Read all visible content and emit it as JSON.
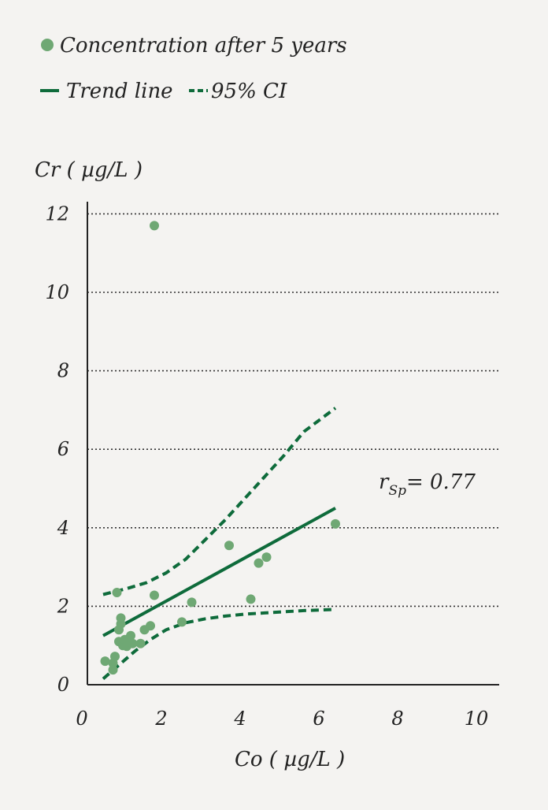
{
  "chart_data": {
    "type": "scatter",
    "xlabel": "Co ( µg/L )",
    "ylabel": "Cr ( µg/L )",
    "xlim": [
      0,
      10.5
    ],
    "ylim": [
      0,
      12.5
    ],
    "x_ticks": [
      0,
      2,
      4,
      6,
      8,
      10
    ],
    "y_ticks": [
      0,
      2,
      4,
      6,
      8,
      10,
      12
    ],
    "grid": "horizontal dotted",
    "legend": {
      "placement": "top-left",
      "entries": [
        {
          "label": "Concentration after 5 years",
          "marker": "circle",
          "color": "#6fa874"
        },
        {
          "label": "Trend line",
          "marker": "solid-line",
          "color": "#0e6b3b"
        },
        {
          "label": "95% CI",
          "marker": "dashed-line",
          "color": "#0e6b3b"
        }
      ]
    },
    "annotation": {
      "symbol": "r",
      "subscript": "Sp",
      "text": "= 0.77",
      "x": 7.4,
      "y": 5.0
    },
    "series": [
      {
        "name": "Concentration after 5 years",
        "type": "scatter",
        "color": "#6fa874",
        "points": [
          [
            0.45,
            0.6
          ],
          [
            0.65,
            0.55
          ],
          [
            0.65,
            0.38
          ],
          [
            0.7,
            0.72
          ],
          [
            0.8,
            1.1
          ],
          [
            0.75,
            2.35
          ],
          [
            0.8,
            1.4
          ],
          [
            0.85,
            1.55
          ],
          [
            0.85,
            1.7
          ],
          [
            0.9,
            1.0
          ],
          [
            0.95,
            1.15
          ],
          [
            1.0,
            0.98
          ],
          [
            1.1,
            1.25
          ],
          [
            1.15,
            1.05
          ],
          [
            1.35,
            1.05
          ],
          [
            1.45,
            1.4
          ],
          [
            1.6,
            1.5
          ],
          [
            1.7,
            2.28
          ],
          [
            1.7,
            11.7
          ],
          [
            2.4,
            1.6
          ],
          [
            2.65,
            2.1
          ],
          [
            3.6,
            3.55
          ],
          [
            4.15,
            2.18
          ],
          [
            4.35,
            3.1
          ],
          [
            4.55,
            3.25
          ],
          [
            6.3,
            4.1
          ]
        ]
      },
      {
        "name": "Trend line",
        "type": "line",
        "color": "#0e6b3b",
        "points": [
          [
            0.4,
            1.25
          ],
          [
            6.3,
            4.5
          ]
        ]
      },
      {
        "name": "95% CI",
        "type": "dashed-line",
        "color": "#0e6b3b",
        "upper": [
          [
            0.4,
            2.3
          ],
          [
            1.0,
            2.45
          ],
          [
            1.5,
            2.6
          ],
          [
            2.0,
            2.85
          ],
          [
            2.5,
            3.2
          ],
          [
            3.0,
            3.7
          ],
          [
            3.5,
            4.2
          ],
          [
            4.0,
            4.75
          ],
          [
            4.5,
            5.3
          ],
          [
            5.0,
            5.85
          ],
          [
            5.5,
            6.45
          ],
          [
            6.3,
            7.05
          ]
        ],
        "lower": [
          [
            0.4,
            0.15
          ],
          [
            0.8,
            0.5
          ],
          [
            1.2,
            0.85
          ],
          [
            1.6,
            1.15
          ],
          [
            2.0,
            1.4
          ],
          [
            2.5,
            1.58
          ],
          [
            3.0,
            1.68
          ],
          [
            3.5,
            1.75
          ],
          [
            4.0,
            1.8
          ],
          [
            4.5,
            1.83
          ],
          [
            5.0,
            1.86
          ],
          [
            5.5,
            1.89
          ],
          [
            6.3,
            1.92
          ]
        ]
      }
    ]
  }
}
